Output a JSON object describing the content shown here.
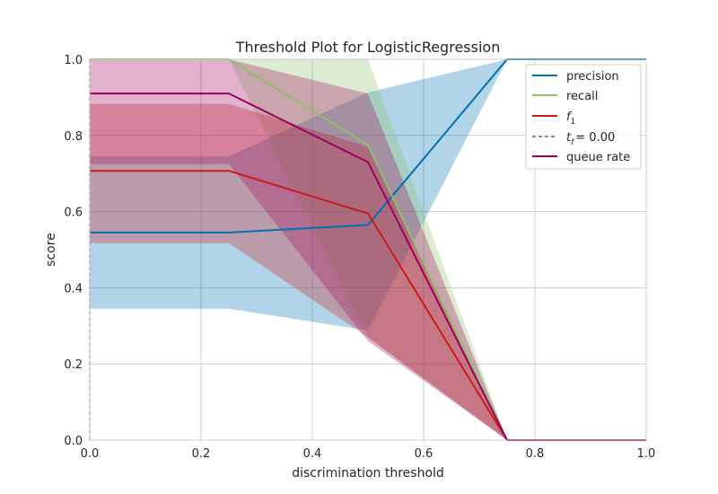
{
  "chart_data": {
    "type": "line",
    "title": "Threshold Plot for LogisticRegression",
    "xlabel": "discrimination threshold",
    "ylabel": "score",
    "xlim": [
      0,
      1
    ],
    "ylim": [
      0,
      1
    ],
    "xticks": [
      "0.0",
      "0.2",
      "0.4",
      "0.6",
      "0.8",
      "1.0"
    ],
    "yticks": [
      "0.0",
      "0.2",
      "0.4",
      "0.6",
      "0.8",
      "1.0"
    ],
    "grid": true,
    "legend_position": "top-right",
    "x": [
      0,
      0.25,
      0.5,
      0.75,
      1.0
    ],
    "series": [
      {
        "name": "precision",
        "color": "#0072b2",
        "values": [
          0.545,
          0.545,
          0.565,
          1.0,
          1.0
        ],
        "band_lower": [
          0.345,
          0.345,
          0.288,
          1.0,
          1.0
        ],
        "band_upper": [
          0.745,
          0.745,
          0.913,
          1.0,
          1.0
        ]
      },
      {
        "name": "recall",
        "color": "#8cc06a",
        "values": [
          1.0,
          1.0,
          0.775,
          0.0,
          0.0
        ],
        "band_lower": [
          1.0,
          1.0,
          0.27,
          0.0,
          0.0
        ],
        "band_upper": [
          1.0,
          1.0,
          1.0,
          0.0,
          0.0
        ]
      },
      {
        "name": "f1",
        "color": "#cc1a1a",
        "values": [
          0.707,
          0.707,
          0.595,
          0.0,
          0.0
        ],
        "band_lower": [
          0.517,
          0.517,
          0.27,
          0.0,
          0.0
        ],
        "band_upper": [
          0.883,
          0.883,
          0.77,
          0.0,
          0.0
        ]
      },
      {
        "name": "queue rate",
        "color": "#a0005a",
        "values": [
          0.91,
          0.91,
          0.73,
          0.0,
          0.0
        ],
        "band_lower": [
          0.725,
          0.725,
          0.26,
          0.0,
          0.0
        ],
        "band_upper": [
          1.0,
          1.0,
          0.91,
          0.0,
          0.0
        ]
      }
    ],
    "threshold_line": {
      "label": "t_f = 0.00",
      "value": 0.0,
      "color": "#444444"
    },
    "legend": [
      "precision",
      "recall",
      "f",
      "1",
      "t",
      "f",
      "= 0.00",
      "queue rate"
    ]
  }
}
